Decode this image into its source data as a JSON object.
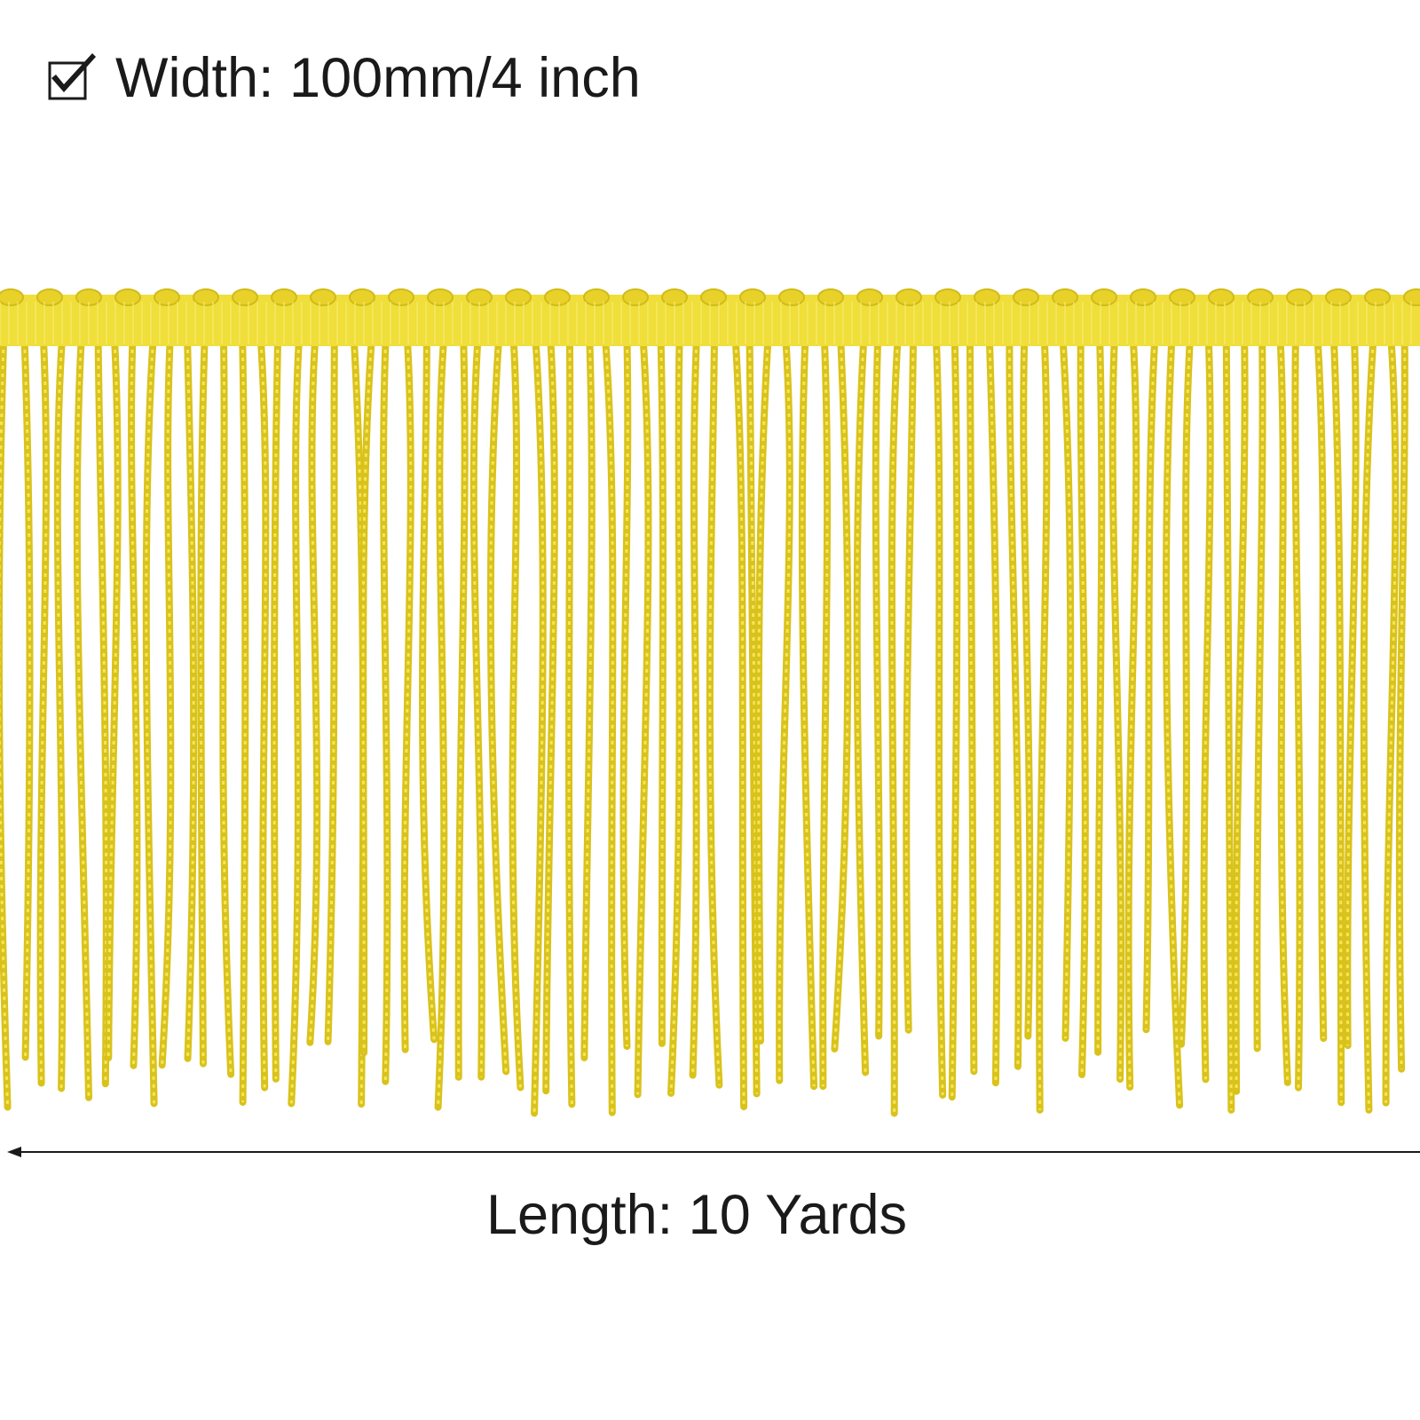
{
  "width_label": "Width: 100mm/4 inch",
  "length_label": "Length: 10 Yards"
}
